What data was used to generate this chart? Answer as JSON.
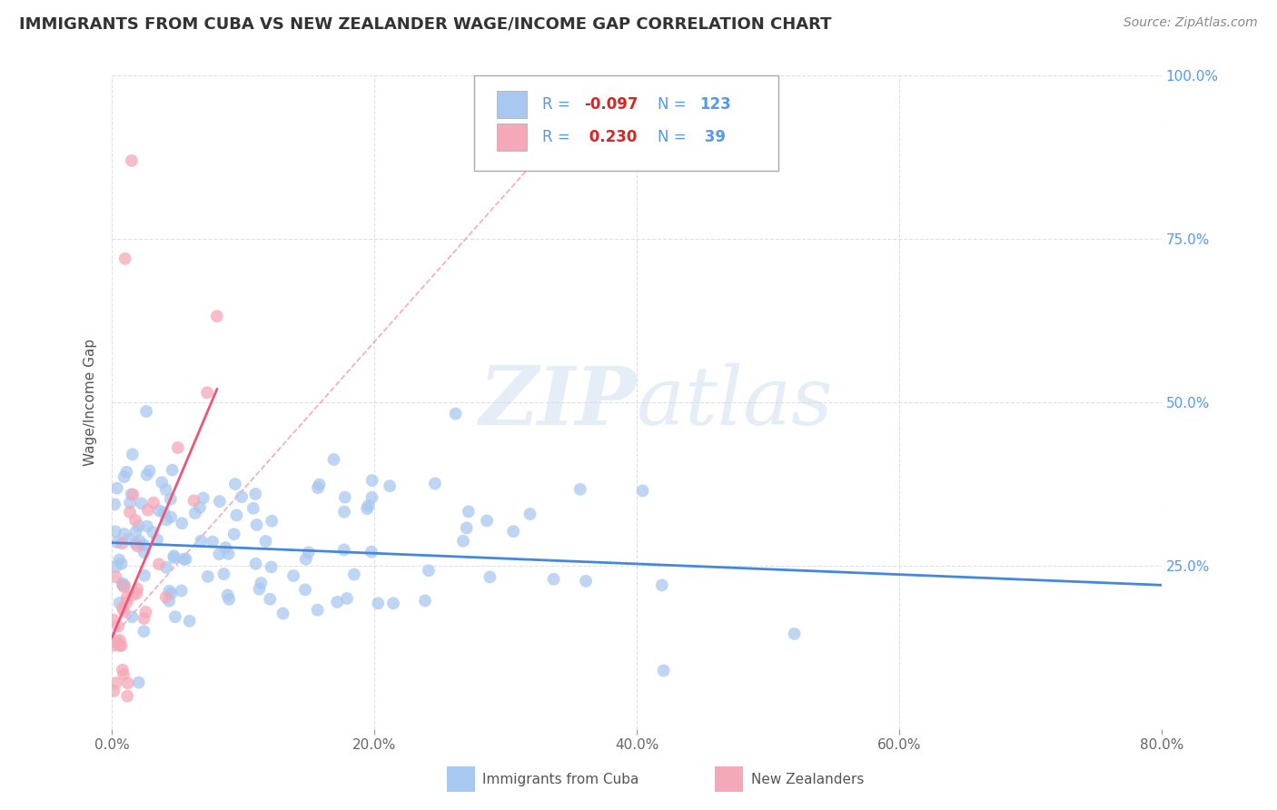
{
  "title": "IMMIGRANTS FROM CUBA VS NEW ZEALANDER WAGE/INCOME GAP CORRELATION CHART",
  "source": "Source: ZipAtlas.com",
  "ylabel": "Wage/Income Gap",
  "legend_labels": [
    "Immigrants from Cuba",
    "New Zealanders"
  ],
  "r_cuba": -0.097,
  "n_cuba": 123,
  "r_nz": 0.23,
  "n_nz": 39,
  "blue_color": "#a8c8f0",
  "pink_color": "#f5a8b8",
  "blue_line_color": "#4488dd",
  "pink_line_color": "#ee5577",
  "watermark_color": "#ccddf0",
  "background_color": "#ffffff",
  "grid_color": "#cccccc",
  "title_color": "#333333",
  "source_color": "#888888",
  "ytick_color": "#5599ee",
  "xlim": [
    0,
    80
  ],
  "ylim": [
    0,
    100
  ],
  "blue_trend_y_start": 28.5,
  "blue_trend_y_end": 22.0,
  "pink_trend_x_start": 0,
  "pink_trend_y_start": 14,
  "pink_trend_x_end": 8,
  "pink_trend_y_end": 52
}
